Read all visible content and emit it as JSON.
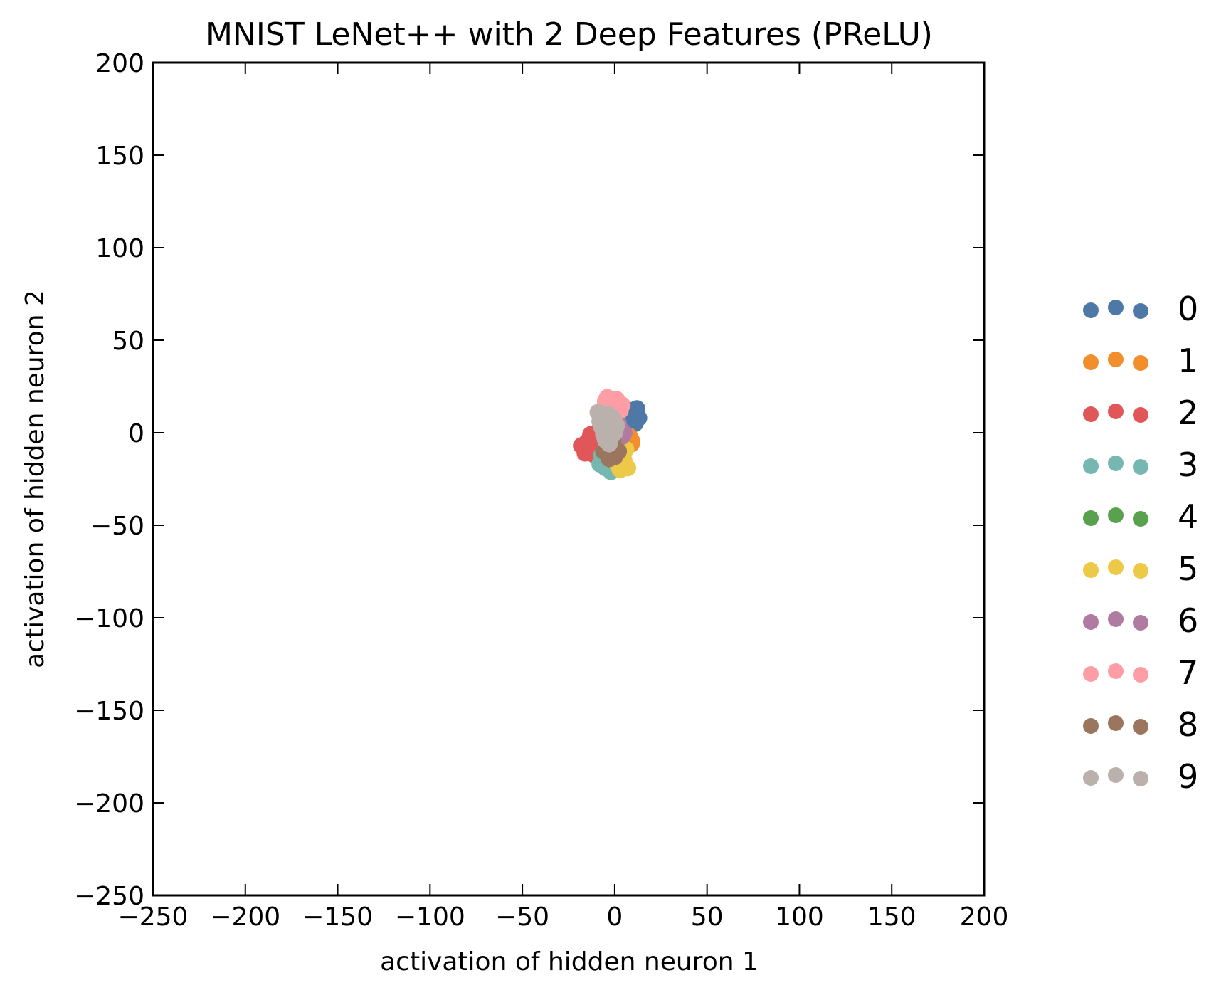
{
  "chart_data": {
    "type": "scatter",
    "title": "MNIST LeNet++ with 2 Deep Features (PReLU)",
    "xlabel": "activation of hidden neuron 1",
    "ylabel": "activation of hidden neuron 2",
    "xlim": [
      -250,
      200
    ],
    "ylim": [
      -250,
      200
    ],
    "xticks": [
      -250,
      -200,
      -150,
      -100,
      -50,
      0,
      50,
      100,
      150,
      200
    ],
    "yticks": [
      -250,
      -200,
      -150,
      -100,
      -50,
      0,
      50,
      100,
      150,
      200
    ],
    "xtick_labels": [
      "−250",
      "−200",
      "−150",
      "−100",
      "−50",
      "0",
      "50",
      "100",
      "150",
      "200"
    ],
    "ytick_labels": [
      "−250",
      "−200",
      "−150",
      "−100",
      "−50",
      "0",
      "50",
      "100",
      "150",
      "200"
    ],
    "grid": false,
    "legend_position": "right",
    "series": [
      {
        "name": "0",
        "color": "#4e79a7",
        "points": [
          [
            9,
            12
          ],
          [
            12,
            13
          ],
          [
            10,
            9
          ],
          [
            13,
            8
          ],
          [
            8,
            6
          ],
          [
            11,
            5
          ],
          [
            7,
            10
          ],
          [
            12,
            10
          ]
        ]
      },
      {
        "name": "1",
        "color": "#f28e2b",
        "points": [
          [
            8,
            -2
          ],
          [
            9,
            -4
          ],
          [
            7,
            -5
          ],
          [
            5,
            -3
          ],
          [
            9,
            -6
          ]
        ]
      },
      {
        "name": "2",
        "color": "#e15759",
        "points": [
          [
            -12,
            -2
          ],
          [
            -15,
            -5
          ],
          [
            -18,
            -7
          ],
          [
            -14,
            -9
          ],
          [
            -11,
            -12
          ],
          [
            -16,
            -11
          ],
          [
            -9,
            -4
          ],
          [
            -13,
            -1
          ],
          [
            -10,
            -8
          ]
        ]
      },
      {
        "name": "3",
        "color": "#76b7b2",
        "points": [
          [
            -8,
            -17
          ],
          [
            -5,
            -19
          ],
          [
            -2,
            -21
          ],
          [
            -4,
            -15
          ],
          [
            -7,
            -12
          ],
          [
            -3,
            -19
          ]
        ]
      },
      {
        "name": "4",
        "color": "#59a14f",
        "points": [
          [
            -2,
            -12
          ],
          [
            0,
            -10
          ],
          [
            -1,
            -15
          ]
        ]
      },
      {
        "name": "5",
        "color": "#edc948",
        "points": [
          [
            2,
            -18
          ],
          [
            5,
            -15
          ],
          [
            7,
            -19
          ],
          [
            4,
            -12
          ],
          [
            6,
            -9
          ],
          [
            3,
            -20
          ],
          [
            1,
            -16
          ]
        ]
      },
      {
        "name": "6",
        "color": "#b07aa1",
        "points": [
          [
            3,
            2
          ],
          [
            5,
            0
          ],
          [
            2,
            5
          ],
          [
            4,
            -2
          ],
          [
            1,
            3
          ]
        ]
      },
      {
        "name": "7",
        "color": "#ff9da7",
        "points": [
          [
            -4,
            19
          ],
          [
            -2,
            16
          ],
          [
            1,
            18
          ],
          [
            4,
            15
          ],
          [
            -6,
            13
          ],
          [
            -1,
            11
          ],
          [
            -5,
            17
          ],
          [
            3,
            12
          ]
        ]
      },
      {
        "name": "8",
        "color": "#9c755f",
        "points": [
          [
            -4,
            -6
          ],
          [
            -2,
            -9
          ],
          [
            0,
            -13
          ],
          [
            2,
            -10
          ],
          [
            -6,
            -10
          ],
          [
            -3,
            -14
          ],
          [
            -1,
            -4
          ]
        ]
      },
      {
        "name": "9",
        "color": "#bab0ac",
        "points": [
          [
            -9,
            11
          ],
          [
            -7,
            9
          ],
          [
            -5,
            6
          ],
          [
            -3,
            4
          ],
          [
            -1,
            2
          ],
          [
            -8,
            6
          ],
          [
            -6,
            2
          ],
          [
            -4,
            0
          ],
          [
            -2,
            -2
          ],
          [
            -5,
            -4
          ],
          [
            -3,
            -6
          ],
          [
            0,
            0
          ],
          [
            1,
            4
          ],
          [
            -7,
            3
          ],
          [
            -1,
            8
          ],
          [
            -4,
            10
          ],
          [
            -6,
            -1
          ]
        ]
      }
    ]
  }
}
